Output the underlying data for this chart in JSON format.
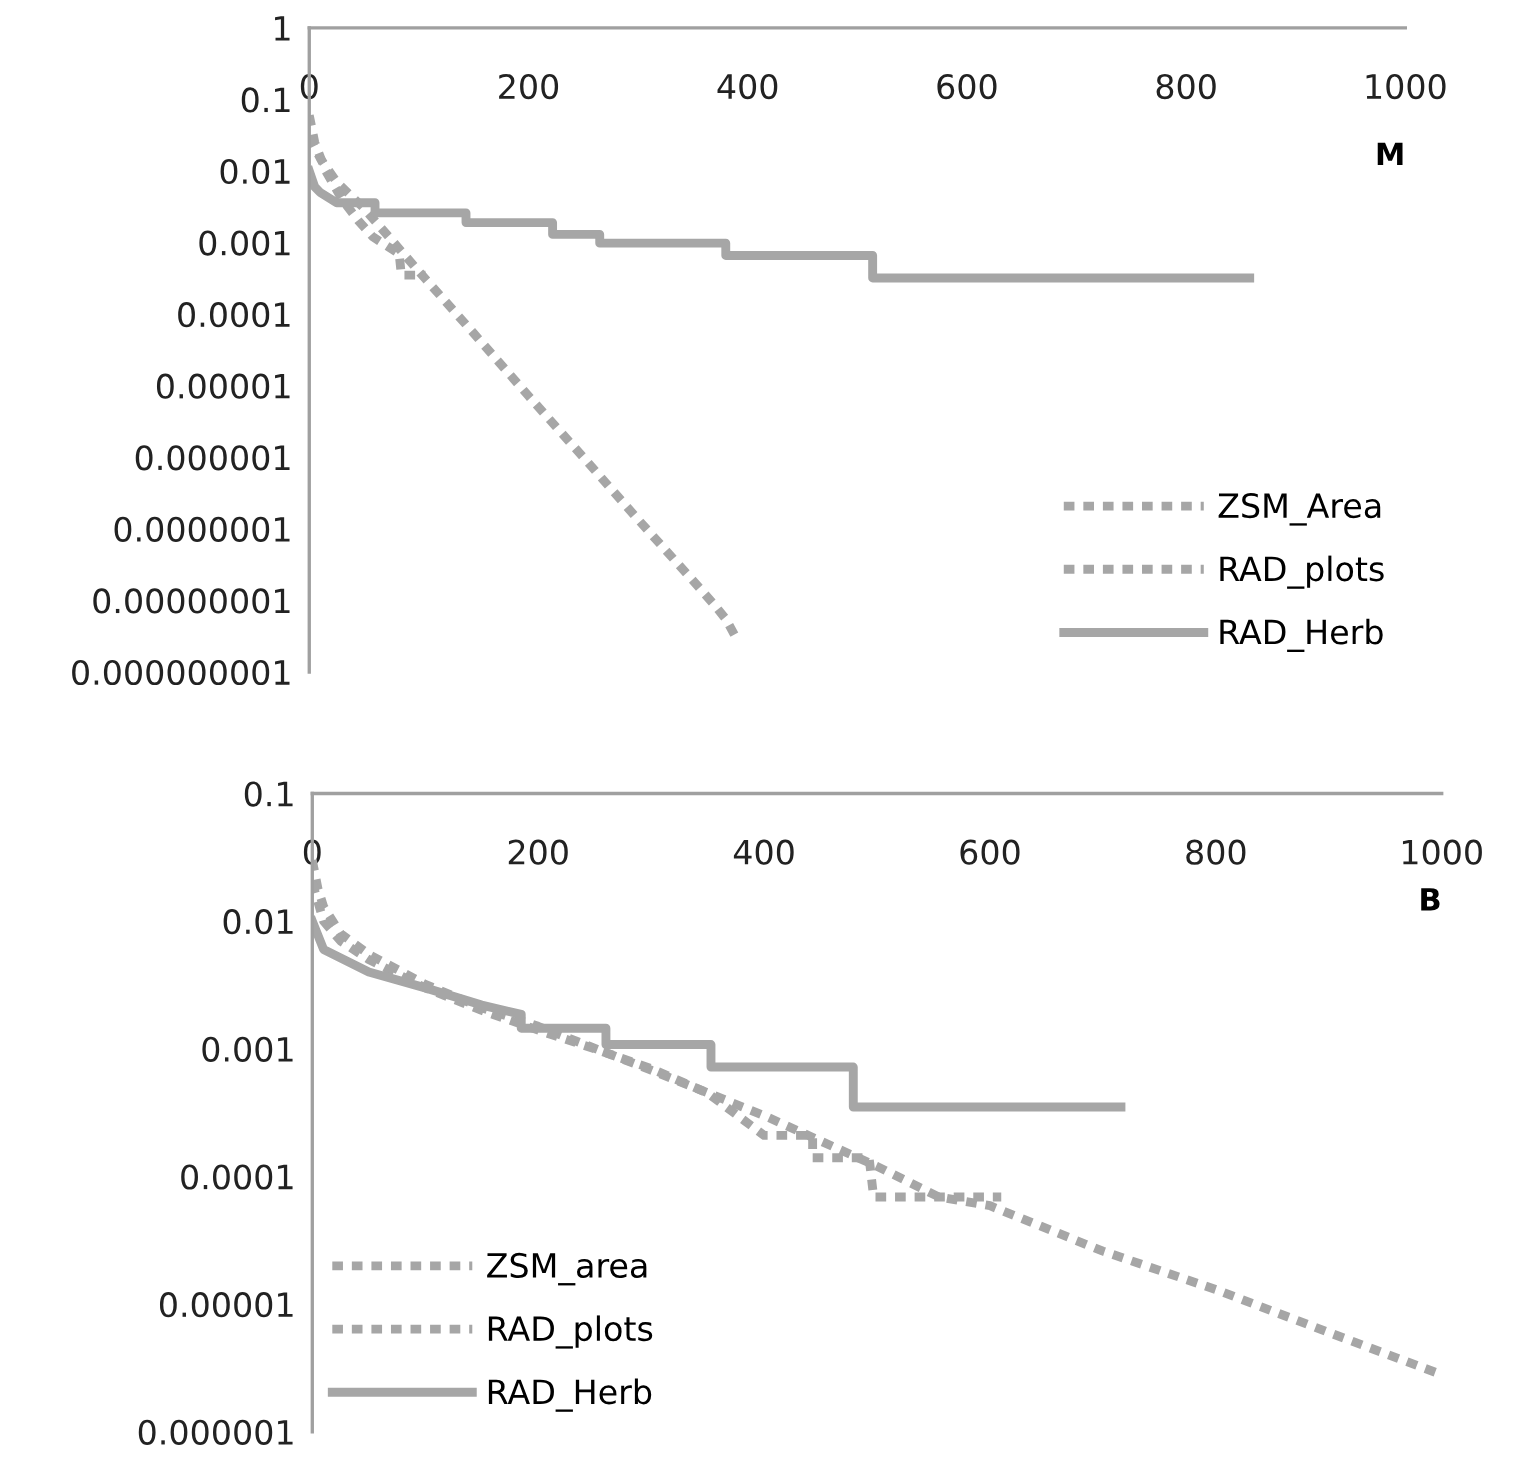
{
  "chart_data": [
    {
      "type": "line",
      "annotations": [
        "M"
      ],
      "log": "y",
      "grid": false,
      "legend": "bottom right",
      "xlim": [
        0,
        1000
      ],
      "xticks": [
        0,
        200,
        400,
        600,
        800,
        1000
      ],
      "ylim": [
        1e-09,
        1
      ],
      "yticks": [
        {
          "value": 1e-09,
          "label": "0.000000001"
        },
        {
          "value": 1e-08,
          "label": "0.00000001"
        },
        {
          "value": 1e-07,
          "label": "0.0000001"
        },
        {
          "value": 1e-06,
          "label": "0.000001"
        },
        {
          "value": 1e-05,
          "label": "0.00001"
        },
        0.0001,
        0.001,
        0.01,
        0.1,
        1
      ],
      "series": [
        {
          "name": "ZSM_Area",
          "color": "#a6a6a6",
          "line_style": "dashed",
          "x": [
            0,
            10,
            25,
            50,
            106,
            150,
            200,
            250,
            300,
            350,
            370,
            380,
            390
          ],
          "values": [
            0.03,
            0.015,
            0.007,
            0.003,
            0.00031,
            5.4e-05,
            7.2e-06,
            1e-06,
            1.35e-07,
            1.9e-08,
            8.5e-09,
            5.5e-09,
            2.9e-09
          ]
        },
        {
          "name": "RAD_plots",
          "color": "#a6a6a6",
          "line_style": "dashed",
          "x": [
            0,
            5,
            15,
            30,
            45,
            58,
            82,
            84,
            106
          ],
          "values": [
            0.06,
            0.025,
            0.01,
            0.004,
            0.002,
            0.0012,
            0.0007,
            0.00035,
            0.00035
          ]
        },
        {
          "name": "RAD_Herb",
          "color": "#a6a6a6",
          "line_style": "solid",
          "x": [
            0,
            5,
            10,
            25,
            60,
            60,
            143,
            143,
            222,
            222,
            265,
            265,
            380,
            380,
            514,
            514,
            858
          ],
          "values": [
            0.01,
            0.006,
            0.005,
            0.0036,
            0.0036,
            0.0026,
            0.0026,
            0.0019,
            0.0019,
            0.0013,
            0.0013,
            0.00098,
            0.00098,
            0.00066,
            0.00066,
            0.00032,
            0.00032
          ]
        }
      ]
    },
    {
      "type": "line",
      "annotations": [
        "B"
      ],
      "log": "y",
      "grid": false,
      "legend": "bottom left",
      "xlim": [
        0,
        1000
      ],
      "xticks": [
        0,
        200,
        400,
        600,
        800,
        1000
      ],
      "ylim": [
        1e-06,
        0.1
      ],
      "yticks": [
        {
          "value": 1e-06,
          "label": "0.000001"
        },
        {
          "value": 1e-05,
          "label": "0.00001"
        },
        0.0001,
        0.001,
        0.01,
        0.1
      ],
      "series": [
        {
          "name": "ZSM_area",
          "color": "#a6a6a6",
          "line_style": "dashed",
          "x": [
            0,
            5,
            10,
            25,
            50,
            100,
            150,
            200,
            300,
            400,
            500,
            555,
            600,
            700,
            800,
            900,
            1000
          ],
          "values": [
            0.03,
            0.018,
            0.013,
            0.008,
            0.0055,
            0.0032,
            0.0021,
            0.0015,
            0.00068,
            0.0003,
            0.00012,
            6.9e-05,
            5.9e-05,
            2.6e-05,
            1.3e-05,
            6e-06,
            2.8e-06
          ]
        },
        {
          "name": "RAD_plots",
          "color": "#a6a6a6",
          "line_style": "dashed",
          "x": [
            0,
            10,
            25,
            50,
            100,
            150,
            200,
            250,
            300,
            350,
            400,
            443,
            443,
            493,
            497,
            610
          ],
          "values": [
            0.02,
            0.01,
            0.007,
            0.005,
            0.003,
            0.002,
            0.0014,
            0.001,
            0.0007,
            0.00045,
            0.00021,
            0.00021,
            0.00014,
            0.00014,
            6.9e-05,
            6.9e-05
          ]
        },
        {
          "name": "RAD_Herb",
          "color": "#a6a6a6",
          "line_style": "solid",
          "x": [
            0,
            10,
            50,
            100,
            150,
            185,
            185,
            260,
            260,
            353,
            353,
            479,
            479,
            716
          ],
          "values": [
            0.01,
            0.006,
            0.004,
            0.003,
            0.0022,
            0.00186,
            0.00145,
            0.00145,
            0.00108,
            0.00108,
            0.00072,
            0.00072,
            0.00035,
            0.00035
          ]
        }
      ]
    }
  ]
}
